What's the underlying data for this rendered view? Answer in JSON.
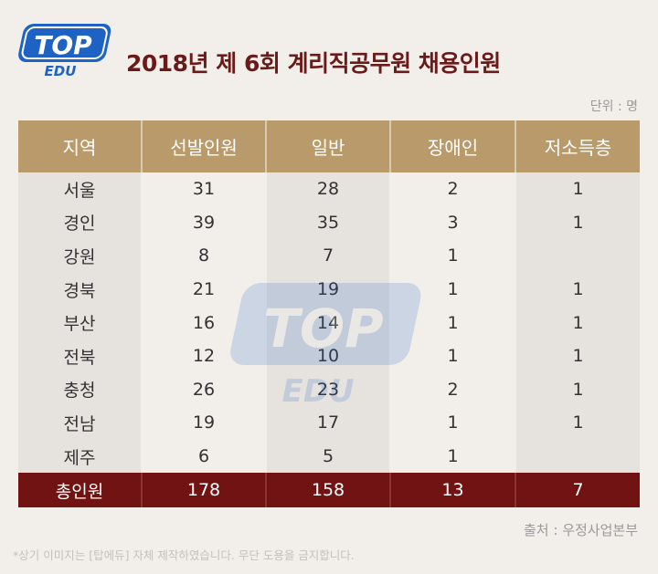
{
  "logo": {
    "top": "TOP",
    "bottom": "EDU"
  },
  "title": "2018년 제 6회 계리직공무원 채용인원",
  "unit_label": "단위 : 명",
  "table": {
    "headers": [
      "지역",
      "선발인원",
      "일반",
      "장애인",
      "저소득층"
    ],
    "rows": [
      [
        "서울",
        "31",
        "28",
        "2",
        "1"
      ],
      [
        "경인",
        "39",
        "35",
        "3",
        "1"
      ],
      [
        "강원",
        "8",
        "7",
        "1",
        ""
      ],
      [
        "경북",
        "21",
        "19",
        "1",
        "1"
      ],
      [
        "부산",
        "16",
        "14",
        "1",
        "1"
      ],
      [
        "전북",
        "12",
        "10",
        "1",
        "1"
      ],
      [
        "충청",
        "26",
        "23",
        "2",
        "1"
      ],
      [
        "전남",
        "19",
        "17",
        "1",
        "1"
      ],
      [
        "제주",
        "6",
        "5",
        "1",
        ""
      ]
    ],
    "total": [
      "총인원",
      "178",
      "158",
      "13",
      "7"
    ]
  },
  "source": "출처 : 우정사업본부",
  "note": "*상기 이미지는 [탑에듀] 자체 제작하였습니다. 무단 도용을 금지합니다.",
  "colors": {
    "title": "#6b1a1a",
    "header_bg": "#b99a6b",
    "total_bg": "#721313",
    "logo_blue": "#1e63c4",
    "page_bg": "#f2efeb"
  }
}
